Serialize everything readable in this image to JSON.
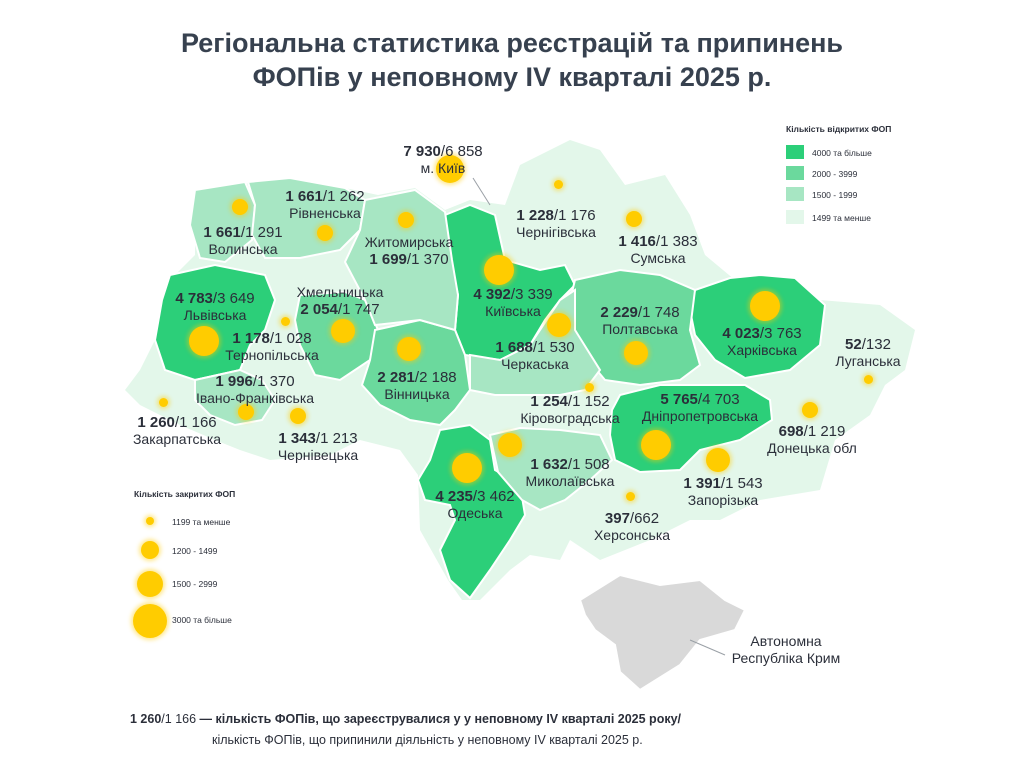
{
  "title": {
    "line1": "Регіональна статистика реєстрацій та припинень",
    "line2": "ФОПів у неповному IV кварталі 2025 р."
  },
  "colors": {
    "tier1": "#2ccf79",
    "tier2": "#6bd99d",
    "tier3": "#a7e6c3",
    "tier4": "#e3f7ea",
    "occupied": "#d9d9d9",
    "dot": "#ffcc00"
  },
  "legend_open": {
    "title": "Кількість відкритих ФОП",
    "items": [
      {
        "label": "4000 та більше",
        "color": "#2ccf79"
      },
      {
        "label": "2000 - 3999",
        "color": "#6bd99d"
      },
      {
        "label": "1500 - 1999",
        "color": "#a7e6c3"
      },
      {
        "label": "1499 та менше",
        "color": "#e3f7ea"
      }
    ]
  },
  "legend_closed": {
    "title": "Кількість закритих ФОП",
    "items": [
      {
        "label": "1199 та менше"
      },
      {
        "label": "1200 - 1499"
      },
      {
        "label": "1500 - 2999"
      },
      {
        "label": "3000 та більше"
      }
    ]
  },
  "regions": {
    "volynska": {
      "open": "1 661",
      "closed": "1 291",
      "name": "Волинська"
    },
    "rivnenska": {
      "open": "1 661",
      "closed": "1 262",
      "name": "Рівненська"
    },
    "zhytomyrska": {
      "open": "1 699",
      "closed": "1 370",
      "name": "Житомирська"
    },
    "kyiv_city": {
      "open": "7 930",
      "closed": "6 858",
      "name": "м. Київ"
    },
    "chernihivska": {
      "open": "1 228",
      "closed": "1 176",
      "name": "Чернігівська"
    },
    "sumska": {
      "open": "1 416",
      "closed": "1 383",
      "name": "Сумська"
    },
    "lvivska": {
      "open": "4 783",
      "closed": "3 649",
      "name": "Львівська"
    },
    "khmelnytska": {
      "open": "2 054",
      "closed": "1 747",
      "name": "Хмельницька"
    },
    "kyivska": {
      "open": "4 392",
      "closed": "3 339",
      "name": "Київська"
    },
    "poltavska": {
      "open": "2 229",
      "closed": "1 748",
      "name": "Полтавська"
    },
    "kharkivska": {
      "open": "4 023",
      "closed": "3 763",
      "name": "Харківська"
    },
    "luhanska": {
      "open": "52",
      "closed": "132",
      "name": "Луганська"
    },
    "ternopilska": {
      "open": "1 178",
      "closed": "1 028",
      "name": "Тернопільська"
    },
    "cherkaska": {
      "open": "1 688",
      "closed": "1 530",
      "name": "Черкаська"
    },
    "vinnytska": {
      "open": "2 281",
      "closed": "2 188",
      "name": "Вінницька"
    },
    "ivano_frankivska": {
      "open": "1 996",
      "closed": "1 370",
      "name": "Івано-Франківська"
    },
    "kirovohradska": {
      "open": "1 254",
      "closed": "1 152",
      "name": "Кіровоградська"
    },
    "dnipropetrovska": {
      "open": "5 765",
      "closed": "4 703",
      "name": "Дніпропетровська"
    },
    "donetska": {
      "open": "698",
      "closed": "1 219",
      "name": "Донецька обл"
    },
    "zakarpatska": {
      "open": "1 260",
      "closed": "1 166",
      "name": "Закарпатська"
    },
    "chernivetska": {
      "open": "1 343",
      "closed": "1 213",
      "name": "Чернівецька"
    },
    "mykolaivska": {
      "open": "1 632",
      "closed": "1 508",
      "name": "Миколаївська"
    },
    "zaporizka": {
      "open": "1 391",
      "closed": "1 543",
      "name": "Запорізька"
    },
    "odeska": {
      "open": "4 235",
      "closed": "3 462",
      "name": "Одеська"
    },
    "khersonska": {
      "open": "397",
      "closed": "662",
      "name": "Херсонська"
    }
  },
  "crimea": {
    "line1": "Автономна",
    "line2": "Республіка Крим"
  },
  "footer": {
    "example_open": "1 260",
    "example_closed": "1 166",
    "line1": "— кількість ФОПів, що зареєструвалися у у неповному IV кварталі 2025 року/",
    "line2": "кількість ФОПів, що припинили діяльність у неповному IV кварталі 2025 р."
  }
}
